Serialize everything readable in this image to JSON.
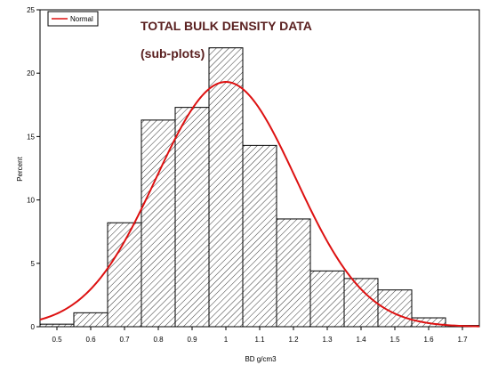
{
  "chart_data": {
    "type": "bar",
    "title": "TOTAL BULK DENSITY DATA",
    "subtitle": "(sub-plots)",
    "xlabel": "BD  g/cm3",
    "ylabel": "Percent",
    "xlim": [
      0.45,
      1.75
    ],
    "ylim": [
      0,
      25
    ],
    "x_ticks": [
      "0.5",
      "0.6",
      "0.7",
      "0.8",
      "0.9",
      "1",
      "1.1",
      "1.2",
      "1.3",
      "1.4",
      "1.5",
      "1.6",
      "1.7"
    ],
    "y_ticks": [
      "0",
      "5",
      "10",
      "15",
      "20",
      "25"
    ],
    "bin_width": 0.1,
    "categories": [
      0.5,
      0.6,
      0.7,
      0.8,
      0.9,
      1.0,
      1.1,
      1.2,
      1.3,
      1.4,
      1.5,
      1.6,
      1.7
    ],
    "values": [
      0.2,
      1.1,
      8.2,
      16.3,
      17.3,
      22.0,
      14.3,
      8.5,
      4.4,
      3.8,
      2.9,
      0.7,
      0.1
    ],
    "normal_curve": {
      "name": "Normal",
      "mean": 1.0,
      "std": 0.2066,
      "color": "#dd1111"
    },
    "legend": {
      "placement": "top-left",
      "entries": [
        "Normal"
      ]
    },
    "grid": false,
    "bar_fill": "hatched"
  }
}
